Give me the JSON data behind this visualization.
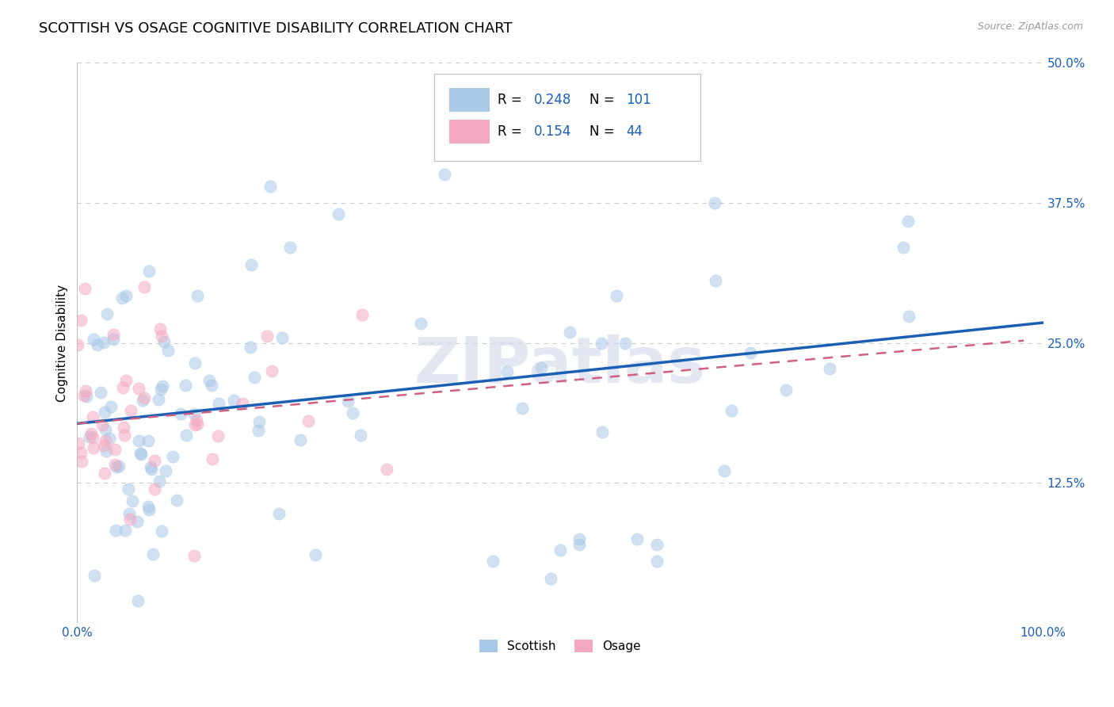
{
  "title": "SCOTTISH VS OSAGE COGNITIVE DISABILITY CORRELATION CHART",
  "source": "Source: ZipAtlas.com",
  "ylabel": "Cognitive Disability",
  "xlim": [
    0,
    1.0
  ],
  "ylim": [
    0,
    0.5
  ],
  "yticks": [
    0.0,
    0.125,
    0.25,
    0.375,
    0.5
  ],
  "ytick_labels": [
    "",
    "12.5%",
    "25.0%",
    "37.5%",
    "50.0%"
  ],
  "xticks": [
    0.0,
    0.25,
    0.5,
    0.75,
    1.0
  ],
  "xtick_labels": [
    "0.0%",
    "",
    "",
    "",
    "100.0%"
  ],
  "scottish_color": "#a8c8e8",
  "osage_color": "#f4a8c0",
  "scottish_line_color": "#1a5fb4",
  "osage_line_color": "#d06080",
  "R_scottish": "0.248",
  "N_scottish": "101",
  "R_osage": "0.154",
  "N_osage": "44",
  "legend_scottish": "Scottish",
  "legend_osage": "Osage",
  "scot_trend_x0": 0.0,
  "scot_trend_x1": 1.0,
  "scot_trend_y0": 0.178,
  "scot_trend_y1": 0.268,
  "osage_trend_x0": 0.0,
  "osage_trend_x1": 0.98,
  "osage_trend_y0": 0.178,
  "osage_trend_y1": 0.252,
  "background_color": "#ffffff",
  "grid_color": "#cccccc",
  "marker_size": 120,
  "marker_alpha": 0.55,
  "title_fontsize": 13,
  "label_fontsize": 11,
  "tick_fontsize": 11,
  "tick_color": "#1a5fb4",
  "watermark_color": "#d0d8e8",
  "legend_number_color": "#1a5fb4"
}
